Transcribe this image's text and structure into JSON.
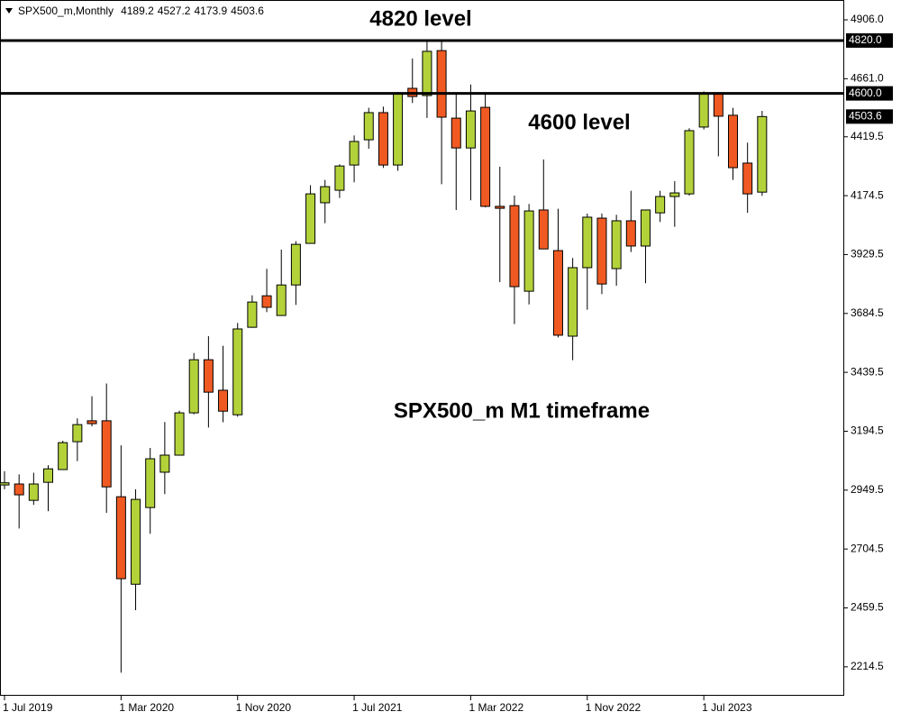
{
  "chart_data": {
    "type": "candlestick",
    "title": "SPX500_m,Monthly",
    "categories": [
      "1 Jul 2019",
      null,
      null,
      null,
      null,
      null,
      null,
      null,
      "1 Mar 2020",
      null,
      null,
      null,
      null,
      null,
      null,
      null,
      "1 Nov 2020",
      null,
      null,
      null,
      null,
      null,
      null,
      null,
      "1 Jul 2021",
      null,
      null,
      null,
      null,
      null,
      null,
      null,
      "1 Mar 2022",
      null,
      null,
      null,
      null,
      null,
      null,
      null,
      "1 Nov 2022",
      null,
      null,
      null,
      null,
      null,
      null,
      null,
      "1 Jul 2023",
      null,
      null,
      null,
      null
    ],
    "open": [
      2971,
      2975,
      2907,
      2982,
      3035,
      3151,
      3238,
      3238,
      2922,
      2558,
      2877,
      3024,
      3095,
      3271,
      3492,
      3365,
      3263,
      3627,
      3758,
      3676,
      3803,
      3976,
      4145,
      4197,
      4302,
      4407,
      4520,
      4302,
      4621,
      4591,
      4778,
      4497,
      4373,
      4542,
      4130,
      4133,
      3777,
      4115,
      3946,
      3590,
      3875,
      4081,
      3871,
      4070,
      3965,
      4103,
      4171,
      4182,
      4460,
      4598,
      4509,
      4310,
      4189.2
    ],
    "high": [
      3028,
      3015,
      3022,
      3053,
      3155,
      3248,
      3340,
      3393,
      3136,
      2953,
      3125,
      3233,
      3280,
      3520,
      3590,
      3550,
      3645,
      3760,
      3870,
      3950,
      3985,
      4218,
      4240,
      4305,
      4425,
      4540,
      4545,
      4606,
      4745,
      4820,
      4820,
      4598,
      4637,
      4595,
      4295,
      4175,
      4140,
      4325,
      4120,
      3915,
      4100,
      4100,
      4095,
      4195,
      4115,
      4195,
      4235,
      4455,
      4608,
      4600,
      4540,
      4395,
      4527.2
    ],
    "low": [
      2953,
      2790,
      2888,
      2862,
      3035,
      3070,
      3215,
      2855,
      2190,
      2450,
      2768,
      2933,
      3110,
      3265,
      3210,
      3232,
      3255,
      3625,
      3690,
      3676,
      3720,
      3976,
      4060,
      4165,
      4230,
      4370,
      4290,
      4278,
      4560,
      4498,
      4222,
      4115,
      4155,
      4126,
      3815,
      3640,
      3722,
      3953,
      3585,
      3490,
      3700,
      3765,
      3800,
      3940,
      3810,
      4065,
      4045,
      4175,
      4450,
      4338,
      4240,
      4103,
      4173.9
    ],
    "close": [
      2980,
      2930,
      2975,
      3038,
      3147,
      3222,
      3226,
      2963,
      2581,
      2911,
      3080,
      3095,
      3271,
      3492,
      3357,
      3278,
      3620,
      3732,
      3710,
      3803,
      3972,
      4182,
      4212,
      4298,
      4400,
      4520,
      4302,
      4598,
      4587,
      4775,
      4501,
      4373,
      4527,
      4130,
      4122,
      3796,
      4111,
      3953,
      3594,
      3875,
      4085,
      3807,
      4070,
      3965,
      4115,
      4171,
      4186,
      4445,
      4598,
      4505,
      4291,
      4182,
      4503.6
    ],
    "up_color": "#b3d23a",
    "down_color": "#f05a22",
    "ylim": [
      2094,
      4988.5
    ],
    "yticks": [
      {
        "value": 4906,
        "label": "4906.0"
      },
      {
        "value": 4661,
        "label": "4661.0"
      },
      {
        "value": 4419.5,
        "label": "4419.5"
      },
      {
        "value": 4174.5,
        "label": "4174.5"
      },
      {
        "value": 3929.5,
        "label": "3929.5"
      },
      {
        "value": 3684.5,
        "label": "3684.5"
      },
      {
        "value": 3439.5,
        "label": "3439.5"
      },
      {
        "value": 3194.5,
        "label": "3194.5"
      },
      {
        "value": 2949.5,
        "label": "2949.5"
      },
      {
        "value": 2704.5,
        "label": "2704.5"
      },
      {
        "value": 2459.5,
        "label": "2459.5"
      },
      {
        "value": 2214.5,
        "label": "2214.5"
      }
    ],
    "levels": [
      {
        "value": 4820,
        "label": "4820.0"
      },
      {
        "value": 4600,
        "label": "4600.0"
      }
    ],
    "annotations": [
      "4820 level",
      "4600 level",
      "SPX500_m M1 timeframe"
    ]
  }
}
